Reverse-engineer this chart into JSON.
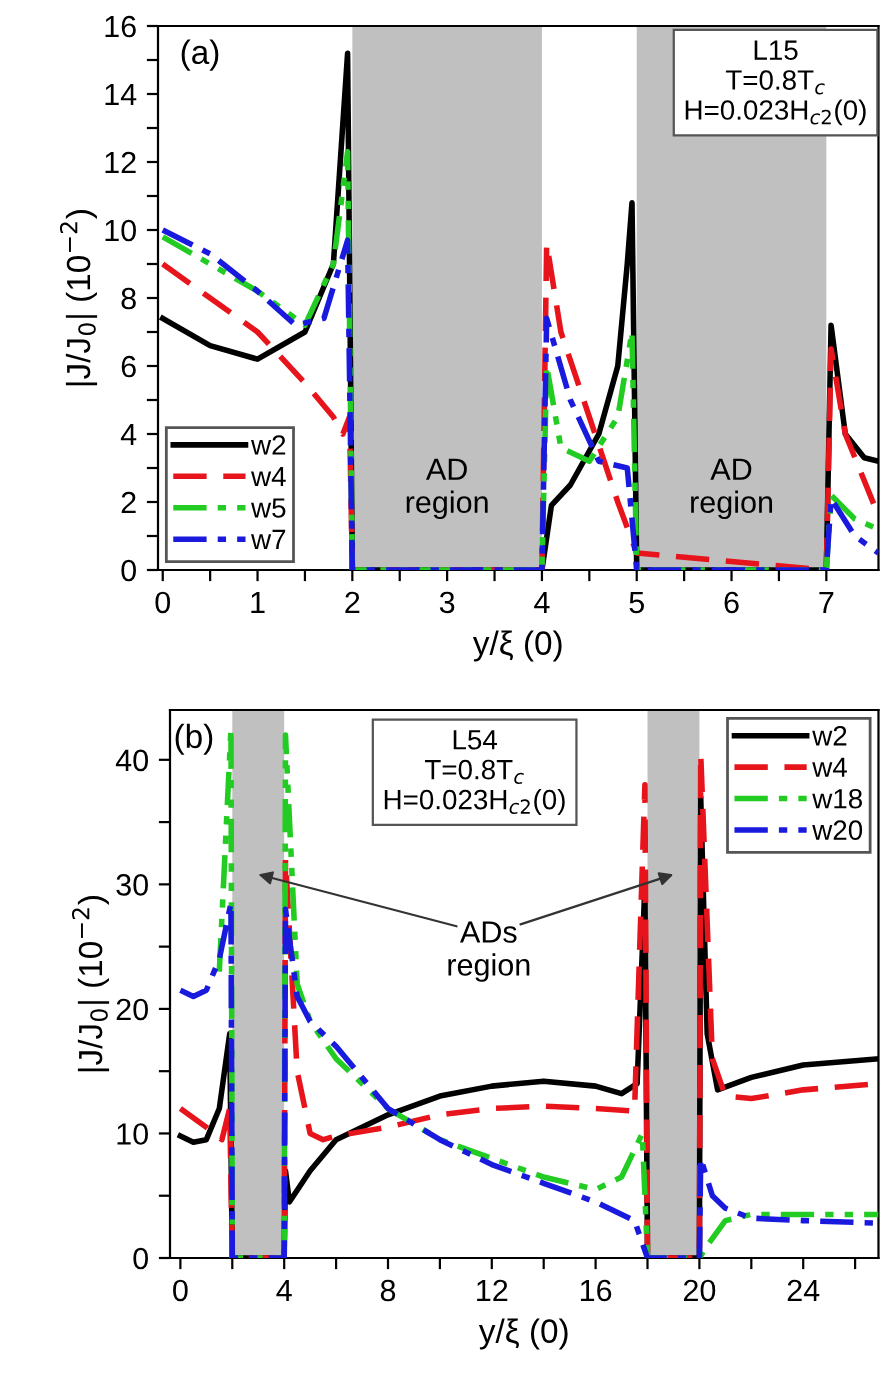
{
  "chart_data": [
    {
      "type": "line",
      "xlabel": "y/ξ (0)",
      "ylabel": "|J/J$_{0}$| (10$^{−2}$)",
      "xlim": [
        -0.05,
        7.55
      ],
      "xticks": [
        0,
        {
          "value": 0.5,
          "label": null
        },
        1,
        {
          "value": 1.5,
          "label": null
        },
        2,
        {
          "value": 2.5,
          "label": null
        },
        3,
        {
          "value": 3.5,
          "label": null
        },
        4,
        {
          "value": 4.5,
          "label": null
        },
        5,
        {
          "value": 5.5,
          "label": null
        },
        6,
        {
          "value": 6.5,
          "label": null
        },
        7
      ],
      "ylim": [
        0,
        16
      ],
      "yticks": [
        0,
        {
          "value": 1,
          "label": null
        },
        2,
        {
          "value": 3,
          "label": null
        },
        4,
        {
          "value": 5,
          "label": null
        },
        6,
        {
          "value": 7,
          "label": null
        },
        8,
        {
          "value": 9,
          "label": null
        },
        10,
        {
          "value": 11,
          "label": null
        },
        12,
        {
          "value": 13,
          "label": null
        },
        14,
        {
          "value": 15,
          "label": null
        },
        16
      ],
      "legend": "bottom left",
      "grid": false,
      "bands": [
        {
          "axis": "x",
          "from": 2,
          "to": 4,
          "label": "AD\nregion",
          "color": "#c0c0c0"
        },
        {
          "axis": "x",
          "from": 5,
          "to": 7,
          "label": "AD\nregion",
          "color": "#c0c0c0"
        }
      ],
      "annotations": [
        "(a)",
        "L15\nT=0.8T$_{c}$\nH=0.023H$_{c2}$(0)"
      ],
      "series": [
        {
          "name": "w2",
          "color": "#000000",
          "line_style": "solid",
          "x": [
            0,
            0.5,
            1,
            1.5,
            1.8,
            1.95,
            2,
            4,
            4.1,
            4.3,
            4.6,
            4.8,
            4.9,
            4.95,
            5,
            7,
            7.05,
            7.2,
            7.4,
            7.55
          ],
          "values": [
            7.4,
            6.6,
            6.2,
            7,
            9,
            15.2,
            0,
            0,
            1.9,
            2.5,
            4,
            6,
            9,
            10.8,
            0,
            0,
            7.2,
            4,
            3.3,
            3.2
          ]
        },
        {
          "name": "w4",
          "color": "#e8141b",
          "line_style": "dashed",
          "x": [
            0,
            0.5,
            1,
            1.5,
            1.8,
            1.9,
            1.97,
            2,
            4,
            4.05,
            4.2,
            4.5,
            4.8,
            5,
            7,
            7.05,
            7.2,
            7.55
          ],
          "values": [
            9,
            8,
            7,
            5.5,
            4.5,
            4,
            4.5,
            0,
            0,
            9.6,
            7,
            4.5,
            2,
            0.5,
            0,
            6.5,
            4,
            1.6
          ]
        },
        {
          "name": "w5",
          "color": "#22cc22",
          "line_style": "dashdotdot",
          "x": [
            0,
            0.5,
            1,
            1.5,
            1.8,
            1.95,
            2,
            4,
            4.05,
            4.2,
            4.5,
            4.8,
            4.95,
            5,
            7,
            7.05,
            7.3,
            7.55
          ],
          "values": [
            9.8,
            9,
            8.2,
            7.2,
            9,
            12.3,
            0,
            0,
            6,
            3.6,
            3.2,
            4.5,
            7,
            0,
            0,
            2.2,
            1.5,
            1.2
          ]
        },
        {
          "name": "w7",
          "color": "#1a1adf",
          "line_style": "dashdot",
          "x": [
            0,
            0.5,
            1,
            1.4,
            1.7,
            1.95,
            2,
            4,
            4.05,
            4.3,
            4.6,
            4.9,
            5,
            7,
            7.05,
            7.3,
            7.55
          ],
          "values": [
            10,
            9.3,
            8.2,
            7.2,
            7.4,
            9.7,
            0,
            0,
            7.4,
            5,
            3.2,
            3,
            0,
            0,
            2.1,
            1,
            0.5
          ]
        }
      ]
    },
    {
      "type": "line",
      "xlabel": "y/ξ (0)",
      "ylabel": "|J/J$_{0}$| (10$^{−2}$)",
      "xlim": [
        -0.4,
        26.9
      ],
      "xticks": [
        0,
        {
          "value": 2,
          "label": null
        },
        4,
        {
          "value": 6,
          "label": null
        },
        8,
        {
          "value": 10,
          "label": null
        },
        12,
        {
          "value": 14,
          "label": null
        },
        16,
        {
          "value": 18,
          "label": null
        },
        20,
        {
          "value": 22,
          "label": null
        },
        24,
        {
          "value": 26,
          "label": null
        }
      ],
      "ylim": [
        0,
        44
      ],
      "yticks": [
        0,
        {
          "value": 5,
          "label": null
        },
        10,
        {
          "value": 15,
          "label": null
        },
        20,
        {
          "value": 25,
          "label": null
        },
        30,
        {
          "value": 35,
          "label": null
        },
        40
      ],
      "legend": "top right",
      "grid": false,
      "bands": [
        {
          "axis": "x",
          "from": 2,
          "to": 4,
          "color": "#c0c0c0"
        },
        {
          "axis": "x",
          "from": 18,
          "to": 20,
          "color": "#c0c0c0"
        }
      ],
      "annotations": [
        "(b)",
        "L54\nT=0.8T$_{c}$\nH=0.023H$_{c2}$(0)",
        "ADs\nregion"
      ],
      "series": [
        {
          "name": "w2",
          "color": "#000000",
          "line_style": "solid",
          "x": [
            0,
            0.5,
            1,
            1.5,
            1.9,
            2,
            4,
            4.05,
            4.2,
            5,
            6,
            8,
            10,
            12,
            14,
            16,
            17,
            17.6,
            17.9,
            18,
            20,
            20.05,
            20.3,
            20.7,
            22,
            24,
            26.9
          ],
          "values": [
            9.8,
            9.3,
            9.5,
            12,
            18,
            0,
            0,
            7,
            4.5,
            7,
            9.5,
            11.5,
            13,
            13.8,
            14.2,
            13.8,
            13.2,
            14,
            30,
            0,
            0,
            37,
            18,
            13.5,
            14.5,
            15.5,
            16
          ]
        },
        {
          "name": "w4",
          "color": "#e8141b",
          "line_style": "dashed",
          "x": [
            0,
            1,
            1.6,
            1.9,
            2,
            4,
            4.05,
            4.5,
            5,
            5.5,
            6,
            8,
            10,
            12,
            14,
            16,
            17.5,
            17.9,
            18,
            20,
            20.05,
            20.5,
            21,
            22,
            24,
            26.9
          ],
          "values": [
            12,
            10.5,
            9.5,
            12,
            0,
            0,
            32,
            15,
            10,
            9.5,
            9.8,
            10.5,
            11.5,
            12,
            12.2,
            12,
            11.8,
            38,
            0,
            0,
            40.5,
            16,
            13,
            12.8,
            13.5,
            14
          ]
        },
        {
          "name": "w18",
          "color": "#22cc22",
          "line_style": "dashdotdot",
          "x": [
            1.5,
            1.95,
            2,
            4,
            4.05,
            4.5,
            5,
            6,
            8,
            10,
            12,
            14,
            16,
            17,
            17.8,
            18,
            20,
            20.3,
            21,
            22,
            26.9
          ],
          "values": [
            23,
            42.5,
            0,
            0,
            42,
            22,
            19,
            16,
            12,
            9.5,
            8,
            6.5,
            5.5,
            6.5,
            10,
            0,
            0,
            1,
            3,
            3.5,
            3.5
          ]
        },
        {
          "name": "w20",
          "color": "#1a1adf",
          "line_style": "dashdot",
          "x": [
            0,
            0.5,
            1,
            1.5,
            1.95,
            2,
            4,
            4.05,
            4.5,
            5,
            6,
            8,
            10,
            12,
            14,
            16,
            17.5,
            18,
            20,
            20.05,
            20.5,
            21,
            22,
            24,
            26.9
          ],
          "values": [
            21.5,
            21,
            21.5,
            24,
            28.5,
            0,
            0,
            28,
            21,
            19,
            17,
            12,
            9.5,
            7.5,
            6,
            4.5,
            3,
            0,
            0,
            8,
            5,
            4,
            3.2,
            3,
            2.8
          ]
        }
      ]
    }
  ]
}
